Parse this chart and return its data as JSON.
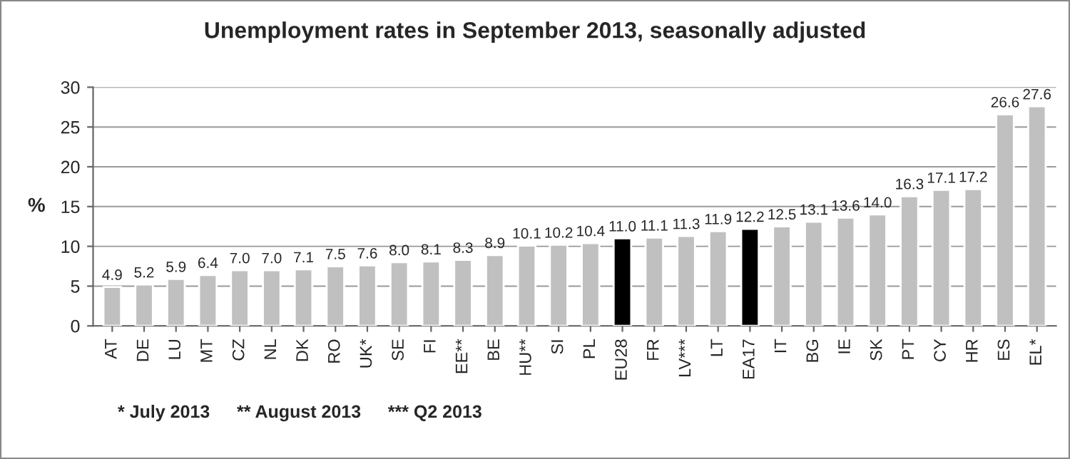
{
  "chart_data": {
    "type": "bar",
    "title": "Unemployment rates in September 2013, seasonally adjusted",
    "ylabel": "%",
    "categories": [
      "AT",
      "DE",
      "LU",
      "MT",
      "CZ",
      "NL",
      "DK",
      "RO",
      "UK*",
      "SE",
      "FI",
      "EE**",
      "BE",
      "HU**",
      "SI",
      "PL",
      "EU28",
      "FR",
      "LV***",
      "LT",
      "EA17",
      "IT",
      "BG",
      "IE",
      "SK",
      "PT",
      "CY",
      "HR",
      "ES",
      "EL*"
    ],
    "values": [
      4.9,
      5.2,
      5.9,
      6.4,
      7.0,
      7.0,
      7.1,
      7.5,
      7.6,
      8.0,
      8.1,
      8.3,
      8.9,
      10.1,
      10.2,
      10.4,
      11.0,
      11.1,
      11.3,
      11.9,
      12.2,
      12.5,
      13.1,
      13.6,
      14.0,
      16.3,
      17.1,
      17.2,
      26.6,
      27.6
    ],
    "value_labels": [
      "4.9",
      "5.2",
      "5.9",
      "6.4",
      "7.0",
      "7.0",
      "7.1",
      "7.5",
      "7.6",
      "8.0",
      "8.1",
      "8.3",
      "8.9",
      "10.1",
      "10.2",
      "10.4",
      "11.0",
      "11.1",
      "11.3",
      "11.9",
      "12.2",
      "12.5",
      "13.1",
      "13.6",
      "14.0",
      "16.3",
      "17.1",
      "17.2",
      "26.6",
      "27.6"
    ],
    "colors": [
      "#c0c0c0",
      "#c0c0c0",
      "#c0c0c0",
      "#c0c0c0",
      "#c0c0c0",
      "#c0c0c0",
      "#c0c0c0",
      "#c0c0c0",
      "#c0c0c0",
      "#c0c0c0",
      "#c0c0c0",
      "#c0c0c0",
      "#c0c0c0",
      "#c0c0c0",
      "#c0c0c0",
      "#c0c0c0",
      "#000000",
      "#c0c0c0",
      "#c0c0c0",
      "#c0c0c0",
      "#000000",
      "#c0c0c0",
      "#c0c0c0",
      "#c0c0c0",
      "#c0c0c0",
      "#c0c0c0",
      "#c0c0c0",
      "#c0c0c0",
      "#c0c0c0",
      "#c0c0c0"
    ],
    "ylim": [
      0,
      30
    ],
    "yticks": [
      0,
      5,
      10,
      15,
      20,
      25,
      30
    ],
    "grid": "y",
    "annotations": [
      "* July 2013",
      "** August 2013",
      "*** Q2 2013"
    ]
  }
}
